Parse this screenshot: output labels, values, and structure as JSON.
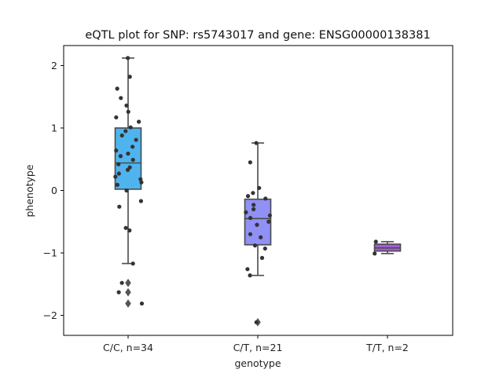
{
  "chart_data": {
    "type": "box",
    "title": "eQTL plot for SNP: rs5743017 and gene: ENSG00000138381",
    "xlabel": "genotype",
    "ylabel": "phenotype",
    "ylim": [
      -2.32,
      2.32
    ],
    "yticks": [
      {
        "value": 2,
        "label": "2"
      },
      {
        "value": 1,
        "label": "1"
      },
      {
        "value": 0,
        "label": "0"
      },
      {
        "value": -1,
        "label": "−1"
      },
      {
        "value": -2,
        "label": "−2"
      }
    ],
    "groups": [
      {
        "label": "C/C, n=34",
        "color": "#4fb4ee",
        "q1": 0.02,
        "median": 0.44,
        "q3": 1.0,
        "whisker_low": -1.17,
        "whisker_high": 2.12,
        "outliers": [
          -1.48,
          -1.63,
          -1.81
        ],
        "points": [
          2.12,
          1.82,
          1.63,
          1.48,
          1.36,
          1.26,
          1.17,
          1.1,
          1.01,
          0.95,
          0.88,
          0.81,
          0.7,
          0.64,
          0.59,
          0.55,
          0.49,
          0.42,
          0.37,
          0.33,
          0.27,
          0.22,
          0.18,
          0.13,
          0.09,
          0.0,
          -0.17,
          -0.26,
          -0.6,
          -0.64,
          -1.17,
          -1.48,
          -1.63,
          -1.81
        ]
      },
      {
        "label": "C/T, n=21",
        "color": "#9090f5",
        "q1": -0.87,
        "median": -0.45,
        "q3": -0.14,
        "whisker_low": -1.36,
        "whisker_high": 0.76,
        "outliers": [
          -2.11
        ],
        "points": [
          0.76,
          0.45,
          0.04,
          -0.04,
          -0.09,
          -0.13,
          -0.23,
          -0.3,
          -0.35,
          -0.4,
          -0.44,
          -0.5,
          -0.55,
          -0.7,
          -0.75,
          -0.88,
          -0.93,
          -1.08,
          -1.26,
          -1.36,
          -2.11
        ]
      },
      {
        "label": "T/T, n=2",
        "color": "#a35fd6",
        "q1": -0.97,
        "median": -0.92,
        "q3": -0.86,
        "whisker_low": -1.01,
        "whisker_high": -0.82,
        "outliers": [],
        "points": [
          -0.82,
          -1.01
        ]
      }
    ]
  }
}
